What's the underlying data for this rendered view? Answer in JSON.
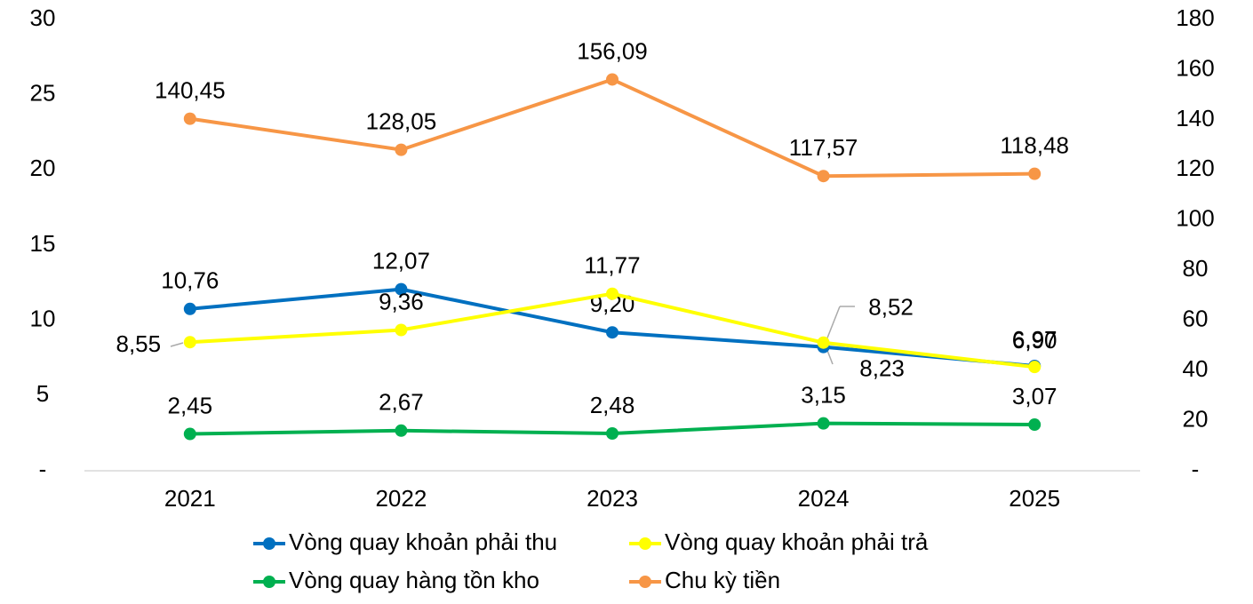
{
  "chart_data": {
    "type": "line",
    "categories": [
      "2021",
      "2022",
      "2023",
      "2024",
      "2025"
    ],
    "ylim": [
      0,
      30
    ],
    "yticks": [
      {
        "value": 0,
        "label": "-"
      },
      5,
      10,
      15,
      20,
      25,
      30
    ],
    "y2lim": [
      0,
      180
    ],
    "y2ticks": [
      {
        "value": 0,
        "label": "-"
      },
      20,
      40,
      60,
      80,
      100,
      120,
      140,
      160,
      180
    ],
    "series": [
      {
        "name": "Vòng quay khoản phải thu",
        "color": "#0070c0",
        "values": [
          10.76,
          12.07,
          9.2,
          8.23,
          6.97
        ],
        "value_labels": [
          "10,76",
          "12,07",
          "9,20",
          "8,23",
          "6,97"
        ]
      },
      {
        "name": "Vòng quay khoản phải trả",
        "color": "#ffff00",
        "values": [
          8.55,
          9.36,
          11.77,
          8.52,
          6.9
        ],
        "value_labels": [
          "8,55",
          "9,36",
          "11,77",
          "8,52",
          "6,90"
        ]
      },
      {
        "name": "Vòng quay hàng tồn kho",
        "color": "#00b050",
        "values": [
          2.45,
          2.67,
          2.48,
          3.15,
          3.07
        ],
        "value_labels": [
          "2,45",
          "2,67",
          "2,48",
          "3,15",
          "3,07"
        ]
      },
      {
        "name": "Chu kỳ tiền",
        "color": "#f79646",
        "axis": "y2",
        "values": [
          140.45,
          128.05,
          156.09,
          117.57,
          118.48
        ],
        "value_labels": [
          "140,45",
          "128,05",
          "156,09",
          "117,57",
          "118,48"
        ]
      }
    ]
  }
}
